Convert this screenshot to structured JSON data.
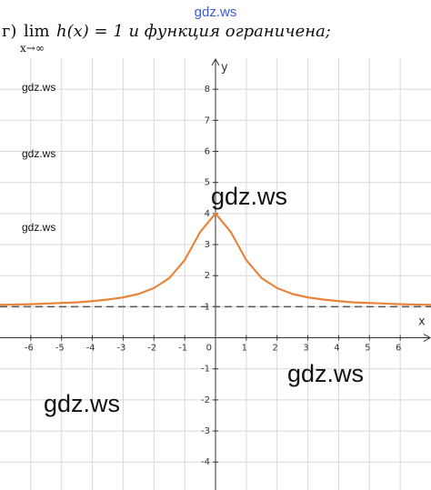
{
  "header": {
    "prefix": "г)",
    "lim": "lim",
    "sub": "x→∞",
    "rest": "h(x) = 1 и функция ограничена;"
  },
  "watermarks": [
    "gdz.ws",
    "gdz.ws",
    "gdz.ws",
    "gdz.ws",
    "gdz.ws",
    "gdz.ws",
    "gdz.ws"
  ],
  "chart_data": {
    "type": "line",
    "x_label": "x",
    "y_label": "y",
    "origin_label": "0",
    "x": [
      -7,
      -6.5,
      -6,
      -5.5,
      -5,
      -4.5,
      -4,
      -3.5,
      -3,
      -2.5,
      -2,
      -1.5,
      -1,
      -0.5,
      0,
      0.5,
      1,
      1.5,
      2,
      2.5,
      3,
      3.5,
      4,
      4.5,
      5,
      5.5,
      6,
      6.5,
      7
    ],
    "values": [
      1.06,
      1.07,
      1.08,
      1.1,
      1.12,
      1.14,
      1.18,
      1.23,
      1.3,
      1.41,
      1.6,
      1.92,
      2.5,
      3.4,
      4,
      3.4,
      2.5,
      1.92,
      1.6,
      1.41,
      1.3,
      1.23,
      1.18,
      1.14,
      1.12,
      1.1,
      1.08,
      1.07,
      1.06
    ],
    "color": "#e8843c",
    "asymptote": 1,
    "xlim": [
      -7,
      7
    ],
    "ylim": [
      -4.9,
      9
    ],
    "xticks": [
      -6,
      -5,
      -4,
      -3,
      -2,
      -1,
      1,
      2,
      3,
      4,
      5,
      6
    ],
    "yticks": [
      -4,
      -3,
      -2,
      -1,
      1,
      2,
      3,
      4,
      5,
      6,
      7,
      8
    ],
    "grid": true
  }
}
